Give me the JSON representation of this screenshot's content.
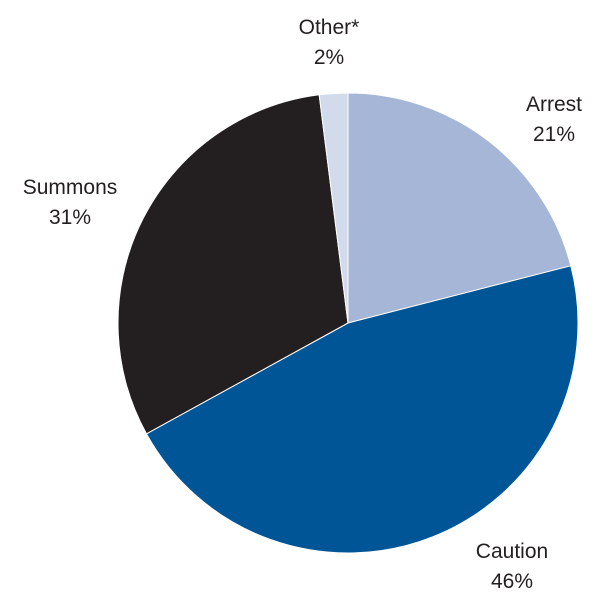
{
  "chart_data": {
    "type": "pie",
    "start_angle_deg": 0,
    "direction": "clockwise",
    "slices": [
      {
        "label": "Arrest",
        "value": 21,
        "display": "21%",
        "color": "#a5b6d6"
      },
      {
        "label": "Caution",
        "value": 46,
        "display": "46%",
        "color": "#005596"
      },
      {
        "label": "Summons",
        "value": 31,
        "display": "31%",
        "color": "#231f20"
      },
      {
        "label": "Other*",
        "value": 2,
        "display": "2%",
        "color": "#d1dbeb"
      }
    ]
  }
}
